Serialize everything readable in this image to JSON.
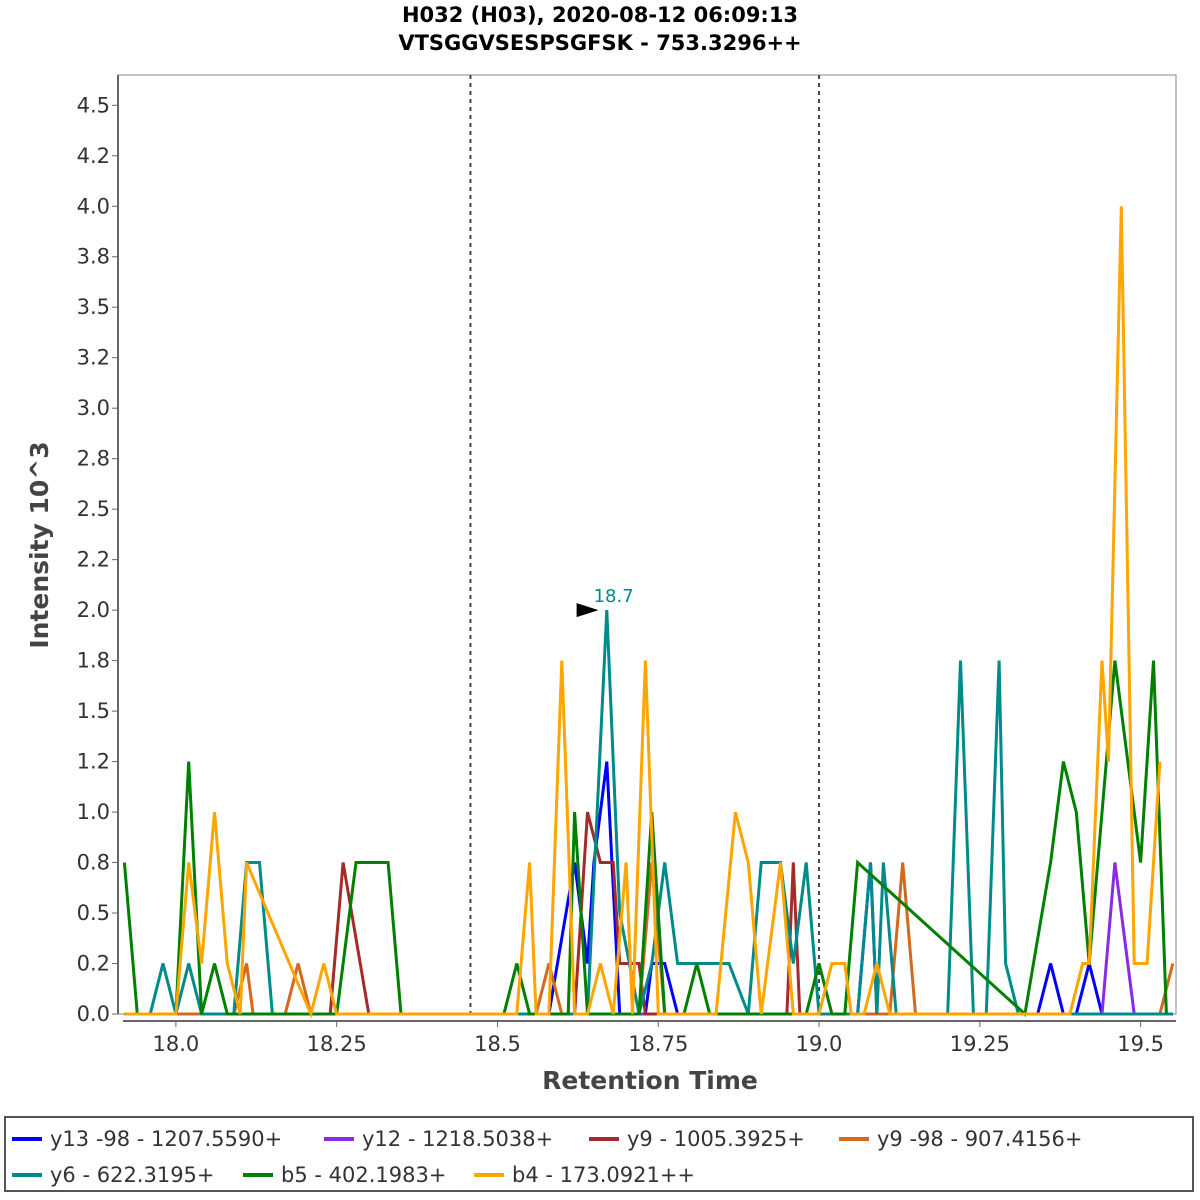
{
  "chart_data": {
    "type": "line",
    "title": "H032 (H03), 2020-08-12 06:09:13",
    "subtitle": "VTSGGVSESPSGFSK - 753.3296++",
    "xlabel": "Retention Time",
    "ylabel": "Intensity 10^3",
    "xlim": [
      17.91,
      19.555
    ],
    "ylim": [
      0,
      4.65
    ],
    "x_ticks": [
      18.0,
      18.25,
      18.5,
      18.75,
      19.0,
      19.25,
      19.5
    ],
    "x_tick_labels": [
      "18.0",
      "18.25",
      "18.5",
      "18.75",
      "19.0",
      "19.25",
      "19.5"
    ],
    "y_ticks": [
      0.0,
      0.25,
      0.5,
      0.75,
      1.0,
      1.25,
      1.5,
      1.75,
      2.0,
      2.25,
      2.5,
      2.75,
      3.0,
      3.25,
      3.5,
      3.75,
      4.0,
      4.25,
      4.5
    ],
    "y_tick_labels": [
      "0.0",
      "0.2",
      "0.5",
      "0.8",
      "1.0",
      "1.2",
      "1.5",
      "1.8",
      "2.0",
      "2.2",
      "2.5",
      "2.8",
      "3.0",
      "3.2",
      "3.5",
      "3.8",
      "4.0",
      "4.2",
      "4.5"
    ],
    "vlines": [
      18.458,
      19.0
    ],
    "grid": false,
    "annotations": [
      {
        "text": "18.7",
        "x": 18.665,
        "y": 2.0,
        "color": "#008B8B"
      }
    ],
    "legend_position": "bottom",
    "series": [
      {
        "name": "y13 -98 - 1207.5590+",
        "color": "#0000FF",
        "x": [
          17.92,
          18.58,
          18.62,
          18.64,
          18.65,
          18.67,
          18.69,
          18.73,
          18.74,
          18.76,
          18.78,
          18.79,
          19.06,
          19.08,
          19.09,
          19.34,
          19.36,
          19.38,
          19.4,
          19.42,
          19.44,
          19.55
        ],
        "y": [
          0,
          0,
          0.75,
          0.25,
          0.75,
          1.25,
          0,
          0,
          0.25,
          0.25,
          0,
          0,
          0,
          0.75,
          0,
          0,
          0.25,
          0,
          0,
          0.25,
          0,
          0
        ]
      },
      {
        "name": "y12 - 1218.5038+",
        "color": "#8A2BE2",
        "x": [
          17.92,
          19.44,
          19.46,
          19.49,
          19.55
        ],
        "y": [
          0,
          0,
          0.75,
          0,
          0
        ]
      },
      {
        "name": "y9 - 1005.3925+",
        "color": "#A52A2A",
        "x": [
          17.92,
          18.24,
          18.26,
          18.3,
          18.31,
          18.62,
          18.64,
          18.66,
          18.68,
          18.69,
          18.72,
          18.73,
          18.95,
          18.96,
          18.97,
          19.55
        ],
        "y": [
          0,
          0,
          0.75,
          0,
          0,
          0,
          1.0,
          0.75,
          0.75,
          0.25,
          0.25,
          0,
          0,
          0.75,
          0,
          0
        ]
      },
      {
        "name": "y9 -98 - 907.4156+",
        "color": "#D2691E",
        "x": [
          17.92,
          18.09,
          18.11,
          18.12,
          18.17,
          18.19,
          18.21,
          18.56,
          18.58,
          18.6,
          18.72,
          18.74,
          18.76,
          19.11,
          19.13,
          19.15,
          19.53,
          19.55
        ],
        "y": [
          0,
          0,
          0.25,
          0,
          0,
          0.25,
          0,
          0,
          0.25,
          0,
          0,
          0.75,
          0,
          0,
          0.75,
          0,
          0,
          0.25
        ]
      },
      {
        "name": "y6 - 622.3195+",
        "color": "#008B8B",
        "x": [
          17.92,
          17.96,
          17.98,
          18.0,
          18.02,
          18.04,
          18.09,
          18.11,
          18.13,
          18.15,
          18.64,
          18.67,
          18.69,
          18.72,
          18.74,
          18.76,
          18.78,
          18.8,
          18.82,
          18.86,
          18.89,
          18.91,
          18.93,
          18.94,
          18.96,
          18.98,
          19.0,
          19.06,
          19.08,
          19.09,
          19.1,
          19.12,
          19.2,
          19.22,
          19.24,
          19.26,
          19.28,
          19.29,
          19.31,
          19.55
        ],
        "y": [
          0,
          0,
          0.25,
          0,
          0.25,
          0,
          0,
          0.75,
          0.75,
          0,
          0,
          2.0,
          0.5,
          0,
          0.25,
          0.75,
          0.25,
          0.25,
          0.25,
          0.25,
          0,
          0.75,
          0.75,
          0.75,
          0.25,
          0.75,
          0,
          0,
          0.75,
          0,
          0.75,
          0,
          0,
          1.75,
          0,
          0,
          1.75,
          0.25,
          0,
          0
        ]
      },
      {
        "name": "b5 - 402.1983+",
        "color": "#008000",
        "x": [
          17.92,
          17.94,
          18.0,
          18.02,
          18.04,
          18.06,
          18.08,
          18.25,
          18.28,
          18.31,
          18.33,
          18.35,
          18.51,
          18.53,
          18.55,
          18.61,
          18.62,
          18.64,
          18.66,
          18.72,
          18.74,
          18.76,
          18.79,
          18.81,
          18.83,
          18.85,
          18.98,
          19.0,
          19.02,
          19.04,
          19.06,
          19.32,
          19.36,
          19.38,
          19.4,
          19.42,
          19.46,
          19.48,
          19.5,
          19.52,
          19.54
        ],
        "y": [
          0.75,
          0,
          0,
          1.25,
          0,
          0.25,
          0,
          0,
          0.75,
          0.75,
          0.75,
          0,
          0,
          0.25,
          0,
          0,
          1.0,
          0,
          0,
          0,
          1.0,
          0,
          0,
          0.25,
          0,
          0,
          0,
          0.25,
          0,
          0,
          0.75,
          0,
          0.75,
          1.25,
          1.0,
          0.25,
          1.75,
          1.25,
          0.75,
          1.75,
          0
        ]
      },
      {
        "name": "b4 - 173.0921++",
        "color": "#FFA500",
        "x": [
          17.92,
          18.0,
          18.02,
          18.04,
          18.06,
          18.08,
          18.1,
          18.11,
          18.21,
          18.23,
          18.25,
          18.53,
          18.55,
          18.56,
          18.58,
          18.6,
          18.62,
          18.64,
          18.66,
          18.68,
          18.7,
          18.71,
          18.73,
          18.75,
          18.84,
          18.87,
          18.89,
          18.91,
          18.94,
          18.96,
          19.0,
          19.02,
          19.04,
          19.05,
          19.07,
          19.09,
          19.11,
          19.39,
          19.41,
          19.42,
          19.44,
          19.45,
          19.47,
          19.49,
          19.5,
          19.51,
          19.53
        ],
        "y": [
          0,
          0,
          0.75,
          0.25,
          1.0,
          0.25,
          0,
          0.75,
          0,
          0.25,
          0,
          0,
          0.75,
          0,
          0,
          1.75,
          0,
          0,
          0.25,
          0,
          0.75,
          0,
          1.75,
          0,
          0,
          1.0,
          0.75,
          0,
          0.75,
          0,
          0,
          0.25,
          0.25,
          0,
          0,
          0.25,
          0,
          0,
          0.25,
          0.25,
          1.75,
          1.25,
          4.0,
          0.25,
          0.25,
          0.25,
          1.25
        ]
      }
    ]
  }
}
